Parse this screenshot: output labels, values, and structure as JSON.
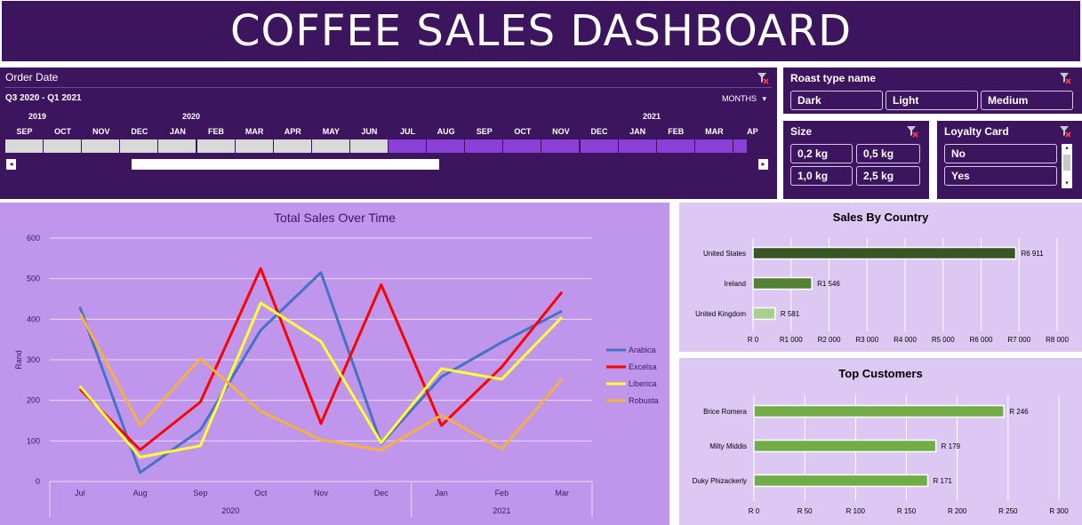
{
  "dashboard": {
    "title": "COFFEE SALES DASHBOARD"
  },
  "timeline": {
    "header": "Order Date",
    "range_label": "Q3 2020 - Q1 2021",
    "level": "MONTHS",
    "years": [
      "2019",
      "2020",
      "2021"
    ],
    "months": [
      "SEP",
      "OCT",
      "NOV",
      "DEC",
      "JAN",
      "FEB",
      "MAR",
      "APR",
      "MAY",
      "JUN",
      "JUL",
      "AUG",
      "SEP",
      "OCT",
      "NOV",
      "DEC",
      "JAN",
      "FEB",
      "MAR",
      "AP"
    ],
    "selected_from_index": 10
  },
  "roast_slicer": {
    "header": "Roast type name",
    "items": [
      "Dark",
      "Light",
      "Medium"
    ]
  },
  "size_slicer": {
    "header": "Size",
    "items": [
      "0,2 kg",
      "0,5 kg",
      "1,0 kg",
      "2,5 kg"
    ]
  },
  "loyalty_slicer": {
    "header": "Loyalty Card",
    "items": [
      "No",
      "Yes"
    ]
  },
  "colors": {
    "dark_purple": "#3d155f",
    "chart_bg": "#bf96ec",
    "right_bg": "#dcc8f2",
    "arabica": "#4472c4",
    "excelsa": "#ff0000",
    "liberica": "#ffff33",
    "robusta": "#f4b142",
    "country_top": "#375623",
    "country_mid": "#548235",
    "country_low": "#a9d08e",
    "customer_bar": "#70ad47"
  },
  "chart_data": [
    {
      "type": "line",
      "title": "Total Sales Over Time",
      "ylabel": "Rand",
      "ylim": [
        0,
        600
      ],
      "yticks": [
        0,
        100,
        200,
        300,
        400,
        500,
        600
      ],
      "categories": [
        "Jul",
        "Aug",
        "Sep",
        "Oct",
        "Nov",
        "Dec",
        "Jan",
        "Feb",
        "Mar"
      ],
      "groups": [
        {
          "label": "2020",
          "count": 6
        },
        {
          "label": "2021",
          "count": 3
        }
      ],
      "grid": true,
      "legend": "right",
      "series": [
        {
          "name": "Arabica",
          "values": [
            430,
            22,
            127,
            373,
            515,
            93,
            258,
            343,
            420
          ]
        },
        {
          "name": "Excelsa",
          "values": [
            228,
            78,
            196,
            525,
            143,
            485,
            138,
            282,
            467
          ]
        },
        {
          "name": "Liberica",
          "values": [
            235,
            60,
            88,
            440,
            345,
            95,
            278,
            252,
            405
          ]
        },
        {
          "name": "Robusta",
          "values": [
            415,
            138,
            303,
            173,
            103,
            77,
            163,
            80,
            252
          ]
        }
      ]
    },
    {
      "type": "bar",
      "title": "Sales By Country",
      "categories": [
        "United States",
        "Ireland",
        "United Kingdom"
      ],
      "values": [
        6911,
        1546,
        581
      ],
      "value_labels": [
        "R6 911",
        "R1 546",
        "R 581"
      ],
      "xlim": [
        0,
        8000
      ],
      "xtick_labels": [
        "R 0",
        "R1 000",
        "R2 000",
        "R3 000",
        "R4 000",
        "R5 000",
        "R6 000",
        "R7 000",
        "R8 000"
      ]
    },
    {
      "type": "bar",
      "title": "Top Customers",
      "categories": [
        "Brice Romera",
        "Milty Middis",
        "Duky Phizackerly"
      ],
      "values": [
        246,
        179,
        171
      ],
      "value_labels": [
        "R 246",
        "R 179",
        "R 171"
      ],
      "xlim": [
        0,
        300
      ],
      "xtick_labels": [
        "R 0",
        "R 50",
        "R 100",
        "R 150",
        "R 200",
        "R 250",
        "R 300"
      ]
    }
  ]
}
